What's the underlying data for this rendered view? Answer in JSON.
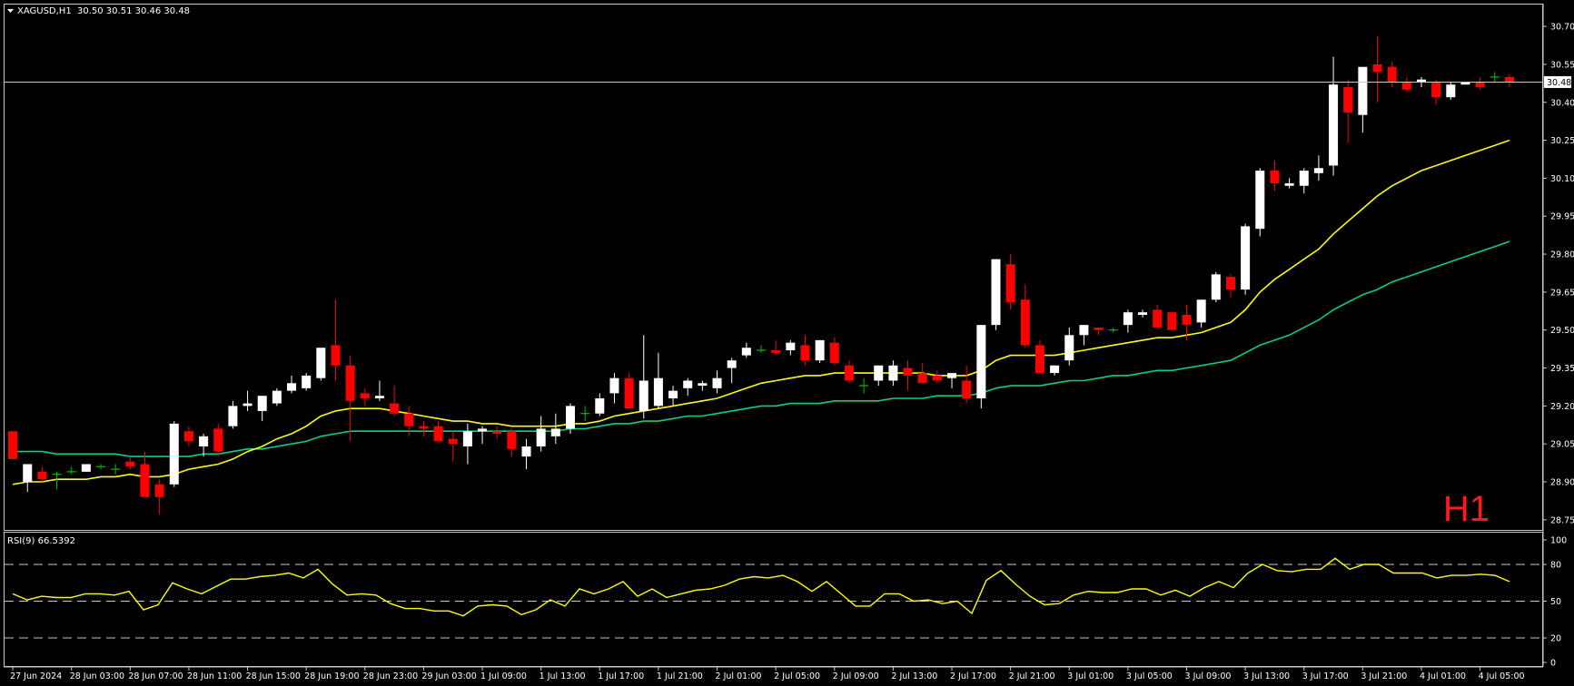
{
  "header": {
    "symbol": "XAGUSD,H1",
    "ohlc": "30.50 30.51 30.46 30.48"
  },
  "timeframe_label": "H1",
  "rsi_header": "RSI(9) 66.5392",
  "current_price_label": "30.48",
  "colors": {
    "background": "#000000",
    "panel_border": "#c8c8c8",
    "bull_candle": "#ffffff",
    "bear_candle": "#ff0000",
    "doji_candle": "#00c000",
    "ma_fast": "#ffff00",
    "ma_slow": "#00d28c",
    "rsi_line": "#ffff00",
    "timeframe_text": "#ff1a1a"
  },
  "chart_data": [
    {
      "type": "candlestick",
      "title": "XAGUSD,H1",
      "y_ticks": [
        "30.70",
        "30.55",
        "30.40",
        "30.25",
        "30.10",
        "29.95",
        "29.80",
        "29.65",
        "29.50",
        "29.35",
        "29.20",
        "29.05",
        "28.90",
        "28.75"
      ],
      "ylim": [
        28.71,
        30.79
      ],
      "current_price": 30.48,
      "x_labels": [
        "27 Jun 2024",
        "28 Jun 03:00",
        "28 Jun 07:00",
        "28 Jun 11:00",
        "28 Jun 15:00",
        "28 Jun 19:00",
        "28 Jun 23:00",
        "29 Jun 03:00",
        "1 Jul 09:00",
        "1 Jul 13:00",
        "1 Jul 17:00",
        "1 Jul 21:00",
        "2 Jul 01:00",
        "2 Jul 05:00",
        "2 Jul 09:00",
        "2 Jul 13:00",
        "2 Jul 17:00",
        "2 Jul 21:00",
        "3 Jul 01:00",
        "3 Jul 05:00",
        "3 Jul 09:00",
        "3 Jul 13:00",
        "3 Jul 17:00",
        "3 Jul 21:00",
        "4 Jul 01:00",
        "4 Jul 05:00"
      ],
      "candles": [
        [
          29.1,
          29.1,
          28.99,
          28.99
        ],
        [
          28.9,
          28.97,
          28.86,
          28.97
        ],
        [
          28.94,
          28.96,
          28.9,
          28.91
        ],
        [
          28.93,
          28.94,
          28.87,
          28.93
        ],
        [
          28.94,
          28.96,
          28.93,
          28.94
        ],
        [
          28.94,
          28.97,
          28.94,
          28.97
        ],
        [
          28.96,
          28.97,
          28.95,
          28.96
        ],
        [
          28.95,
          28.97,
          28.93,
          28.95
        ],
        [
          28.98,
          29.0,
          28.95,
          28.96
        ],
        [
          28.97,
          29.02,
          28.84,
          28.84
        ],
        [
          28.89,
          28.91,
          28.77,
          28.84
        ],
        [
          28.89,
          29.14,
          28.88,
          29.13
        ],
        [
          29.1,
          29.12,
          29.04,
          29.06
        ],
        [
          29.04,
          29.09,
          29.0,
          29.08
        ],
        [
          29.11,
          29.13,
          29.0,
          29.02
        ],
        [
          29.12,
          29.22,
          29.11,
          29.2
        ],
        [
          29.2,
          29.26,
          29.18,
          29.21
        ],
        [
          29.18,
          29.24,
          29.14,
          29.24
        ],
        [
          29.21,
          29.27,
          29.2,
          29.26
        ],
        [
          29.26,
          29.32,
          29.25,
          29.29
        ],
        [
          29.27,
          29.33,
          29.26,
          29.32
        ],
        [
          29.31,
          29.42,
          29.3,
          29.43
        ],
        [
          29.44,
          29.62,
          29.3,
          29.36
        ],
        [
          29.36,
          29.4,
          29.06,
          29.22
        ],
        [
          29.25,
          29.27,
          29.2,
          29.23
        ],
        [
          29.23,
          29.3,
          29.22,
          29.24
        ],
        [
          29.21,
          29.28,
          29.16,
          29.17
        ],
        [
          29.17,
          29.2,
          29.08,
          29.12
        ],
        [
          29.12,
          29.14,
          29.08,
          29.11
        ],
        [
          29.12,
          29.14,
          29.06,
          29.06
        ],
        [
          29.07,
          29.1,
          28.98,
          29.05
        ],
        [
          29.04,
          29.13,
          28.97,
          29.1
        ],
        [
          29.1,
          29.12,
          29.05,
          29.11
        ],
        [
          29.1,
          29.12,
          29.07,
          29.09
        ],
        [
          29.1,
          29.11,
          29.0,
          29.03
        ],
        [
          29.0,
          29.07,
          28.95,
          29.04
        ],
        [
          29.04,
          29.16,
          29.02,
          29.11
        ],
        [
          29.08,
          29.17,
          29.05,
          29.11
        ],
        [
          29.11,
          29.21,
          29.09,
          29.2
        ],
        [
          29.17,
          29.2,
          29.14,
          29.17
        ],
        [
          29.17,
          29.25,
          29.16,
          29.23
        ],
        [
          29.25,
          29.33,
          29.21,
          29.31
        ],
        [
          29.31,
          29.33,
          29.19,
          29.19
        ],
        [
          29.18,
          29.48,
          29.15,
          29.3
        ],
        [
          29.2,
          29.41,
          29.19,
          29.31
        ],
        [
          29.23,
          29.28,
          29.2,
          29.26
        ],
        [
          29.27,
          29.31,
          29.24,
          29.3
        ],
        [
          29.28,
          29.3,
          29.26,
          29.29
        ],
        [
          29.27,
          29.34,
          29.25,
          29.31
        ],
        [
          29.35,
          29.39,
          29.29,
          29.38
        ],
        [
          29.4,
          29.45,
          29.39,
          29.43
        ],
        [
          29.42,
          29.44,
          29.41,
          29.42
        ],
        [
          29.42,
          29.46,
          29.4,
          29.41
        ],
        [
          29.42,
          29.46,
          29.4,
          29.45
        ],
        [
          29.44,
          29.48,
          29.36,
          29.38
        ],
        [
          29.38,
          29.46,
          29.37,
          29.46
        ],
        [
          29.45,
          29.47,
          29.36,
          29.37
        ],
        [
          29.36,
          29.38,
          29.29,
          29.3
        ],
        [
          29.28,
          29.31,
          29.25,
          29.28
        ],
        [
          29.3,
          29.36,
          29.28,
          29.36
        ],
        [
          29.3,
          29.38,
          29.28,
          29.36
        ],
        [
          29.35,
          29.38,
          29.26,
          29.32
        ],
        [
          29.33,
          29.37,
          29.29,
          29.29
        ],
        [
          29.32,
          29.34,
          29.29,
          29.3
        ],
        [
          29.31,
          29.33,
          29.27,
          29.33
        ],
        [
          29.3,
          29.36,
          29.21,
          29.23
        ],
        [
          29.23,
          29.51,
          29.19,
          29.52
        ],
        [
          29.52,
          29.78,
          29.5,
          29.78
        ],
        [
          29.76,
          29.8,
          29.58,
          29.61
        ],
        [
          29.62,
          29.68,
          29.43,
          29.44
        ],
        [
          29.44,
          29.46,
          29.33,
          29.33
        ],
        [
          29.33,
          29.36,
          29.32,
          29.36
        ],
        [
          29.38,
          29.51,
          29.36,
          29.48
        ],
        [
          29.48,
          29.52,
          29.44,
          29.52
        ],
        [
          29.51,
          29.51,
          29.48,
          29.5
        ],
        [
          29.5,
          29.51,
          29.49,
          29.5
        ],
        [
          29.52,
          29.58,
          29.49,
          29.57
        ],
        [
          29.56,
          29.58,
          29.55,
          29.57
        ],
        [
          29.58,
          29.6,
          29.51,
          29.51
        ],
        [
          29.57,
          29.57,
          29.5,
          29.5
        ],
        [
          29.56,
          29.6,
          29.46,
          29.52
        ],
        [
          29.53,
          29.62,
          29.51,
          29.62
        ],
        [
          29.62,
          29.73,
          29.61,
          29.72
        ],
        [
          29.71,
          29.72,
          29.63,
          29.66
        ],
        [
          29.66,
          29.92,
          29.64,
          29.91
        ],
        [
          29.9,
          30.14,
          29.87,
          30.13
        ],
        [
          30.13,
          30.17,
          30.05,
          30.08
        ],
        [
          30.07,
          30.1,
          30.06,
          30.08
        ],
        [
          30.07,
          30.14,
          30.04,
          30.13
        ],
        [
          30.12,
          30.19,
          30.09,
          30.14
        ],
        [
          30.15,
          30.58,
          30.11,
          30.47
        ],
        [
          30.46,
          30.49,
          30.24,
          30.36
        ],
        [
          30.35,
          30.52,
          30.28,
          30.54
        ],
        [
          30.55,
          30.66,
          30.4,
          30.52
        ],
        [
          30.54,
          30.56,
          30.46,
          30.48
        ],
        [
          30.48,
          30.5,
          30.44,
          30.45
        ],
        [
          30.48,
          30.5,
          30.46,
          30.49
        ],
        [
          30.48,
          30.49,
          30.39,
          30.42
        ],
        [
          30.42,
          30.48,
          30.41,
          30.47
        ],
        [
          30.47,
          30.48,
          30.47,
          30.48
        ],
        [
          30.48,
          30.5,
          30.45,
          30.46
        ],
        [
          30.5,
          30.52,
          30.48,
          30.5
        ],
        [
          30.5,
          30.51,
          30.46,
          30.48
        ]
      ],
      "ma_fast": [
        28.89,
        28.9,
        28.9,
        28.91,
        28.91,
        28.91,
        28.92,
        28.92,
        28.93,
        28.92,
        28.92,
        28.93,
        28.95,
        28.96,
        28.97,
        28.99,
        29.02,
        29.04,
        29.07,
        29.09,
        29.12,
        29.16,
        29.18,
        29.19,
        29.19,
        29.19,
        29.18,
        29.17,
        29.16,
        29.15,
        29.14,
        29.14,
        29.13,
        29.13,
        29.12,
        29.12,
        29.12,
        29.12,
        29.13,
        29.13,
        29.14,
        29.16,
        29.17,
        29.18,
        29.19,
        29.2,
        29.21,
        29.22,
        29.23,
        29.25,
        29.27,
        29.29,
        29.3,
        29.31,
        29.32,
        29.32,
        29.33,
        29.33,
        29.33,
        29.33,
        29.33,
        29.33,
        29.33,
        29.32,
        29.32,
        29.32,
        29.34,
        29.38,
        29.4,
        29.4,
        29.4,
        29.4,
        29.41,
        29.42,
        29.43,
        29.44,
        29.45,
        29.46,
        29.47,
        29.47,
        29.48,
        29.49,
        29.51,
        29.53,
        29.58,
        29.65,
        29.7,
        29.74,
        29.78,
        29.82,
        29.88,
        29.93,
        29.98,
        30.03,
        30.07,
        30.1,
        30.13,
        30.15,
        30.17,
        30.19,
        30.21,
        30.23,
        30.25
      ],
      "ma_slow": [
        29.02,
        29.02,
        29.02,
        29.01,
        29.01,
        29.01,
        29.01,
        29.01,
        29.0,
        29.0,
        29.0,
        29.0,
        29.0,
        29.01,
        29.01,
        29.02,
        29.03,
        29.03,
        29.04,
        29.05,
        29.06,
        29.08,
        29.09,
        29.1,
        29.1,
        29.1,
        29.1,
        29.1,
        29.1,
        29.1,
        29.1,
        29.1,
        29.1,
        29.1,
        29.1,
        29.1,
        29.1,
        29.1,
        29.11,
        29.11,
        29.12,
        29.13,
        29.13,
        29.14,
        29.14,
        29.15,
        29.16,
        29.16,
        29.17,
        29.18,
        29.19,
        29.2,
        29.2,
        29.21,
        29.21,
        29.21,
        29.22,
        29.22,
        29.22,
        29.22,
        29.23,
        29.23,
        29.23,
        29.24,
        29.24,
        29.24,
        29.25,
        29.27,
        29.28,
        29.28,
        29.28,
        29.29,
        29.3,
        29.3,
        29.31,
        29.32,
        29.32,
        29.33,
        29.34,
        29.34,
        29.35,
        29.36,
        29.37,
        29.38,
        29.41,
        29.44,
        29.46,
        29.48,
        29.51,
        29.54,
        29.58,
        29.61,
        29.64,
        29.66,
        29.69,
        29.71,
        29.73,
        29.75,
        29.77,
        29.79,
        29.81,
        29.83,
        29.85
      ]
    },
    {
      "type": "line",
      "title": "RSI(9) 66.5392",
      "y_ticks": [
        "100",
        "80",
        "50",
        "20",
        "0"
      ],
      "ylim": [
        0,
        100
      ],
      "levels": [
        80,
        50,
        20
      ],
      "values": [
        56,
        51,
        54,
        53,
        53,
        56,
        56,
        55,
        58,
        43,
        47,
        65,
        60,
        56,
        62,
        68,
        68,
        70,
        71,
        73,
        69,
        76,
        64,
        55,
        56,
        55,
        48,
        44,
        44,
        42,
        42,
        38,
        46,
        47,
        46,
        39,
        43,
        51,
        46,
        60,
        56,
        60,
        66,
        54,
        60,
        53,
        56,
        59,
        60,
        63,
        68,
        70,
        69,
        71,
        66,
        58,
        66,
        56,
        46,
        46,
        56,
        56,
        50,
        51,
        48,
        50,
        40,
        67,
        75,
        64,
        54,
        47,
        48,
        55,
        58,
        57,
        57,
        60,
        60,
        55,
        59,
        54,
        61,
        66,
        61,
        73,
        80,
        75,
        74,
        76,
        76,
        85,
        76,
        80,
        80,
        73,
        73,
        73,
        69,
        71,
        71,
        72,
        71,
        66
      ]
    }
  ]
}
